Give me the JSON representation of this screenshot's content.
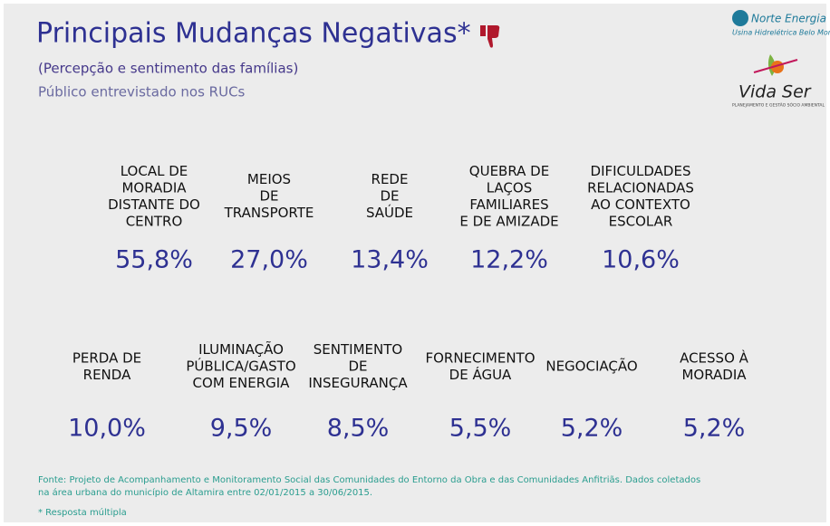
{
  "header": {
    "title": "Principais Mudanças Negativas*",
    "subtitle": "(Percepção e sentimento das famílias)",
    "audience": "Público entrevistado nos RUCs"
  },
  "logos": {
    "norte_energia": {
      "name": "Norte Energia",
      "tagline": "Usina Hidrelétrica Belo Monte"
    },
    "vida_ser": {
      "name": "Vida Ser",
      "tagline": "PLANEJAMENTO E GESTÃO SÓCIO AMBIENTAL"
    }
  },
  "rows": [
    [
      {
        "label": [
          "LOCAL DE",
          "MORADIA",
          "DISTANTE DO",
          "CENTRO"
        ],
        "value": "55,8%"
      },
      {
        "label": [
          "MEIOS",
          "DE",
          "TRANSPORTE"
        ],
        "value": "27,0%"
      },
      {
        "label": [
          "REDE",
          "DE",
          "SAÚDE"
        ],
        "value": "13,4%"
      },
      {
        "label": [
          "QUEBRA DE",
          "LAÇOS",
          "FAMILIARES",
          "E DE AMIZADE"
        ],
        "value": "12,2%"
      },
      {
        "label": [
          "DIFICULDADES",
          "RELACIONADAS",
          "AO CONTEXTO",
          "ESCOLAR"
        ],
        "value": "10,6%"
      }
    ],
    [
      {
        "label": [
          "PERDA DE",
          "RENDA"
        ],
        "value": "10,0%"
      },
      {
        "label": [
          "ILUMINAÇÃO",
          "PÚBLICA/GASTO",
          "COM ENERGIA"
        ],
        "value": "9,5%"
      },
      {
        "label": [
          "SENTIMENTO",
          "DE",
          "INSEGURANÇA"
        ],
        "value": "8,5%"
      },
      {
        "label": [
          "FORNECIMENTO",
          "DE ÁGUA"
        ],
        "value": "5,5%"
      },
      {
        "label": [
          "NEGOCIAÇÃO"
        ],
        "value": "5,2%"
      },
      {
        "label": [
          "ACESSO À",
          "MORADIA"
        ],
        "value": "5,2%"
      }
    ]
  ],
  "footer": {
    "source": [
      "Fonte: Projeto de Acompanhamento e Monitoramento Social das Comunidades do Entorno da Obra e das Comunidades Anfitriãs. Dados coletados",
      "na área urbana do município de Altamira entre 02/01/2015 a 30/06/2015."
    ],
    "note": "* Resposta múltipla"
  }
}
